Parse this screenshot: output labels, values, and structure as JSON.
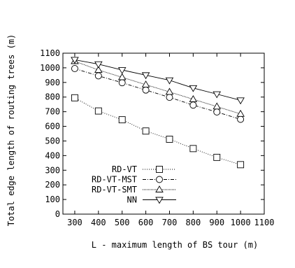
{
  "chart_data": {
    "type": "line",
    "title": "",
    "xlabel": "L - maximum length of BS tour (m)",
    "ylabel": "Total edge length of routing trees (m)",
    "xlim": [
      250,
      1100
    ],
    "ylim": [
      0,
      1100
    ],
    "xticks": [
      300,
      400,
      500,
      600,
      700,
      800,
      900,
      1000,
      1100
    ],
    "yticks": [
      0,
      100,
      200,
      300,
      400,
      500,
      600,
      700,
      800,
      900,
      1000,
      1100
    ],
    "grid": false,
    "legend_position": "bottom-left",
    "x": [
      300,
      400,
      500,
      600,
      700,
      800,
      900,
      1000
    ],
    "series": [
      {
        "name": "RD-VT",
        "marker": "square",
        "dash": "1,2",
        "values": [
          795,
          705,
          645,
          568,
          512,
          448,
          388,
          338
        ]
      },
      {
        "name": "RD-VT-MST",
        "marker": "circle",
        "dash": "5,2,1,2",
        "values": [
          995,
          945,
          898,
          848,
          798,
          745,
          698,
          648
        ]
      },
      {
        "name": "RD-VT-SMT",
        "marker": "triangle-up",
        "dash": "1,1",
        "values": [
          1045,
          985,
          935,
          885,
          835,
          785,
          735,
          685
        ]
      },
      {
        "name": "NN",
        "marker": "triangle-down",
        "dash": "",
        "values": [
          1055,
          1025,
          985,
          950,
          915,
          862,
          820,
          778
        ]
      }
    ]
  }
}
